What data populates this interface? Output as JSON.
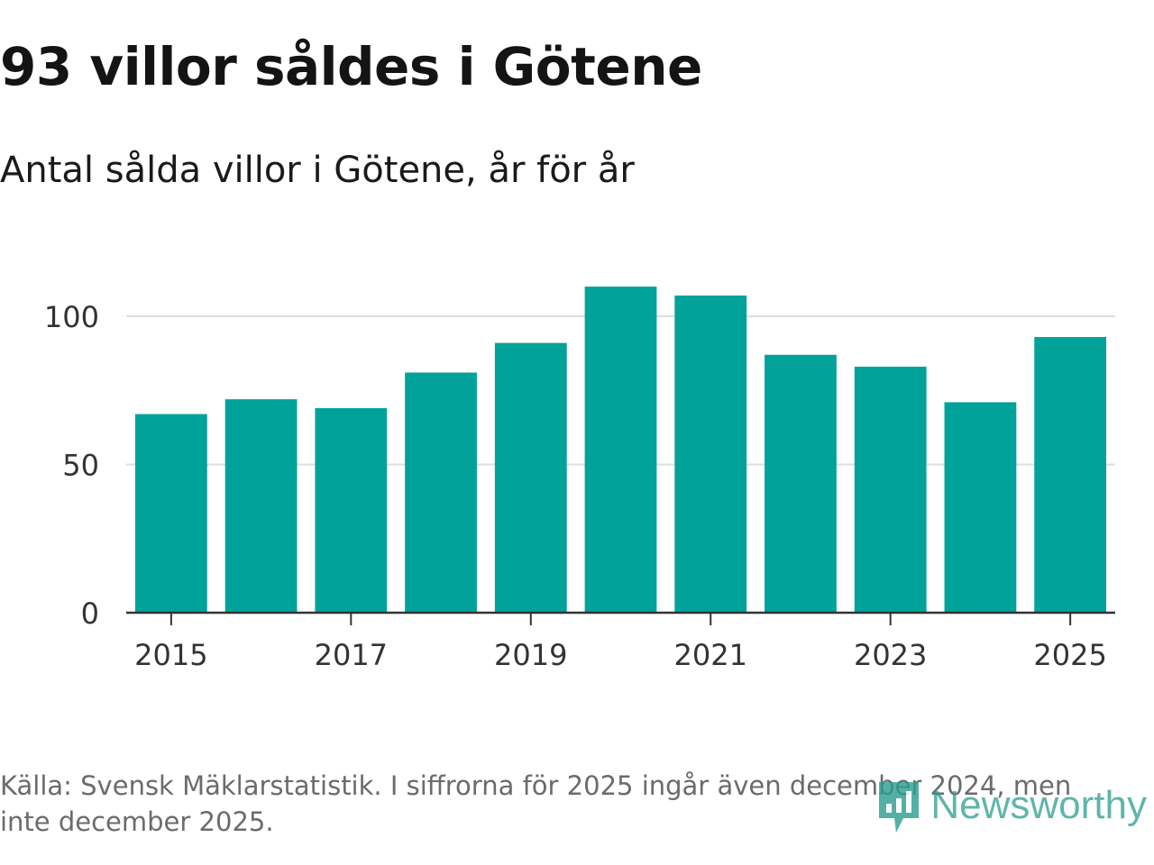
{
  "title": "93 villor såldes i Götene",
  "subtitle": "Antal sålda villor i Götene, år för år",
  "source": "Källa: Svensk Mäklarstatistik. I siffrorna för 2025 ingår även december 2024, men inte december 2025.",
  "brand": {
    "name": "Newsworthy",
    "icon": "newsworthy-logo-icon"
  },
  "colors": {
    "bar": "#00a29a",
    "grid": "#dddddd",
    "axis": "#333333",
    "text": "#333333",
    "brand": "#2a9d8f"
  },
  "chart_data": {
    "type": "bar",
    "title": "93 villor såldes i Götene",
    "subtitle": "Antal sålda villor i Götene, år för år",
    "xlabel": "",
    "ylabel": "",
    "categories": [
      "2015",
      "2016",
      "2017",
      "2018",
      "2019",
      "2020",
      "2021",
      "2022",
      "2023",
      "2024",
      "2025"
    ],
    "values": [
      67,
      72,
      69,
      81,
      91,
      110,
      107,
      87,
      83,
      71,
      93
    ],
    "x_tick_labels": [
      "2015",
      "2017",
      "2019",
      "2021",
      "2023",
      "2025"
    ],
    "y_ticks": [
      0,
      50,
      100
    ],
    "ylim": [
      0,
      110
    ],
    "grid": true
  }
}
